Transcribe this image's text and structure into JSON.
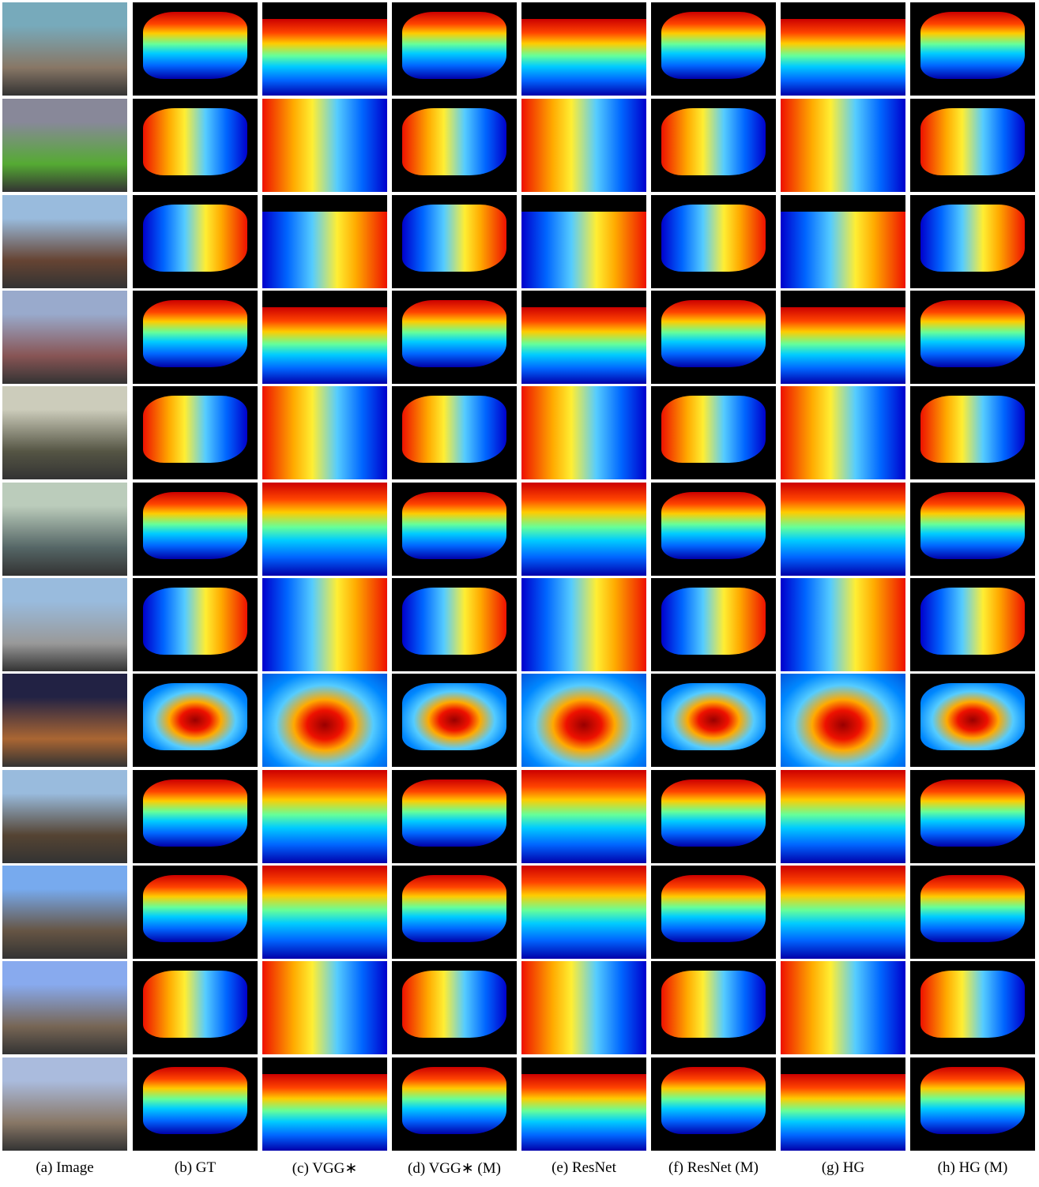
{
  "captions": [
    "(a) Image",
    "(b) GT",
    "(c) VGG∗",
    "(d) VGG∗ (M)",
    "(e) ResNet",
    "(f) ResNet (M)",
    "(g) HG",
    "(h) HG (M)"
  ]
}
